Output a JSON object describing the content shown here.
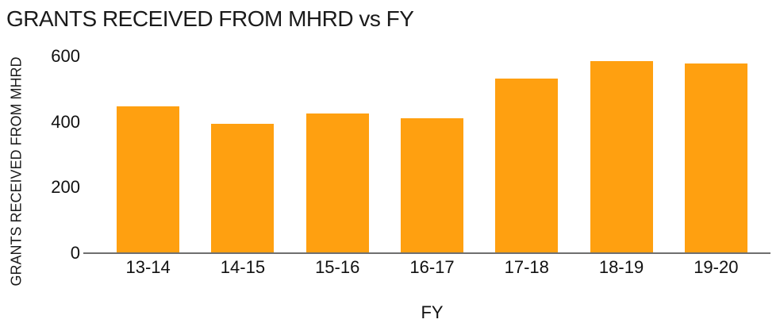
{
  "chart_data": {
    "type": "bar",
    "title": "GRANTS RECEIVED FROM MHRD vs FY",
    "xlabel": "FY",
    "ylabel": "GRANTS RECEIVED FROM MHRD",
    "categories": [
      "13-14",
      "14-15",
      "15-16",
      "16-17",
      "17-18",
      "18-19",
      "19-20"
    ],
    "values": [
      448,
      395,
      425,
      411,
      532,
      586,
      578
    ],
    "ylim": [
      0,
      600
    ],
    "yticks": [
      0,
      200,
      400,
      600
    ],
    "grid": false,
    "legend_position": "none",
    "bar_color": "#FFA010",
    "axis_line_color": "#6f6f6f",
    "text_color": "#1a1a1a",
    "background_color": "#ffffff"
  }
}
